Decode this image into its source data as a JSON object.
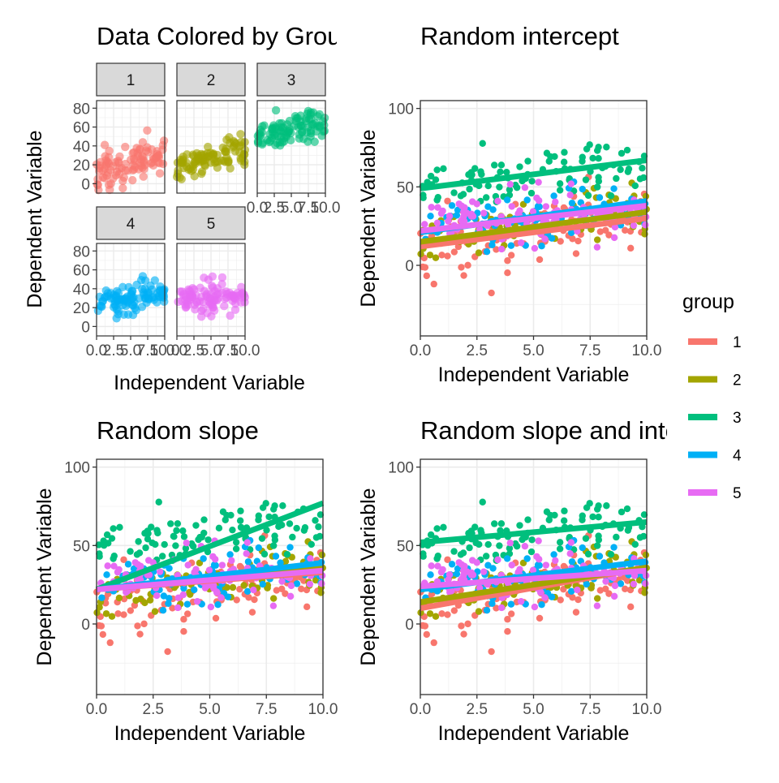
{
  "colors": {
    "1": "#F8766D",
    "2": "#A3A500",
    "3": "#00BF7D",
    "4": "#00B0F6",
    "5": "#E76BF3"
  },
  "chart_data": [
    {
      "type": "scatter",
      "title": "Data Colored by Group",
      "xlabel": "Independent Variable",
      "ylabel": "Dependent Variable",
      "facets": [
        "1",
        "2",
        "3",
        "4",
        "5"
      ],
      "xlim": [
        0,
        10
      ],
      "ylim": [
        -10,
        88
      ],
      "x_ticks": [
        "0.0",
        "2.5",
        "5.0",
        "7.5",
        "10.0"
      ],
      "y_ticks": [
        "0",
        "20",
        "40",
        "60",
        "80"
      ],
      "grid": true,
      "series": [
        {
          "name": "1",
          "intercept": 10,
          "slope": 2.5,
          "noise": 11
        },
        {
          "name": "2",
          "intercept": 15,
          "slope": 2.3,
          "noise": 8
        },
        {
          "name": "3",
          "intercept": 49,
          "slope": 1.6,
          "noise": 9
        },
        {
          "name": "4",
          "intercept": 22,
          "slope": 1.6,
          "noise": 8
        },
        {
          "name": "5",
          "intercept": 31,
          "slope": 0.0,
          "noise": 8
        }
      ]
    },
    {
      "type": "scatter",
      "title": "Random intercept",
      "xlabel": "Independent Variable",
      "ylabel": "Dependent Variable",
      "xlim": [
        0,
        10
      ],
      "ylim": [
        -45,
        105
      ],
      "x_ticks": [
        "0.0",
        "2.5",
        "5.0",
        "7.5",
        "10.0"
      ],
      "y_ticks": [
        "0",
        "50",
        "100"
      ],
      "grid": true,
      "fitted_lines": [
        {
          "group": "1",
          "y_at_x0": 12,
          "y_at_x10": 30
        },
        {
          "group": "2",
          "y_at_x0": 15,
          "y_at_x10": 34
        },
        {
          "group": "3",
          "y_at_x0": 49,
          "y_at_x10": 67
        },
        {
          "group": "4",
          "y_at_x0": 21,
          "y_at_x10": 41
        },
        {
          "group": "5",
          "y_at_x0": 22,
          "y_at_x10": 38
        }
      ]
    },
    {
      "type": "scatter",
      "title": "Random slope",
      "xlabel": "Independent Variable",
      "ylabel": "Dependent Variable",
      "xlim": [
        0,
        10
      ],
      "ylim": [
        -45,
        105
      ],
      "x_ticks": [
        "0.0",
        "2.5",
        "5.0",
        "7.5",
        "10.0"
      ],
      "y_ticks": [
        "0",
        "50",
        "100"
      ],
      "grid": true,
      "fitted_lines": [
        {
          "group": "1",
          "y_at_x0": 22,
          "y_at_x10": 33
        },
        {
          "group": "2",
          "y_at_x0": 22,
          "y_at_x10": 36
        },
        {
          "group": "3",
          "y_at_x0": 22,
          "y_at_x10": 77
        },
        {
          "group": "4",
          "y_at_x0": 22,
          "y_at_x10": 39
        },
        {
          "group": "5",
          "y_at_x0": 22,
          "y_at_x10": 34
        }
      ]
    },
    {
      "type": "scatter",
      "title": "Random slope and intercept",
      "xlabel": "Independent Variable",
      "ylabel": "Dependent Variable",
      "xlim": [
        0,
        10
      ],
      "ylim": [
        -45,
        105
      ],
      "x_ticks": [
        "0.0",
        "2.5",
        "5.0",
        "7.5",
        "10.0"
      ],
      "y_ticks": [
        "0",
        "50",
        "100"
      ],
      "grid": true,
      "fitted_lines": [
        {
          "group": "1",
          "y_at_x0": 10,
          "y_at_x10": 36
        },
        {
          "group": "2",
          "y_at_x0": 14,
          "y_at_x10": 36
        },
        {
          "group": "3",
          "y_at_x0": 52,
          "y_at_x10": 65
        },
        {
          "group": "4",
          "y_at_x0": 22,
          "y_at_x10": 40
        },
        {
          "group": "5",
          "y_at_x0": 24,
          "y_at_x10": 34
        }
      ]
    }
  ],
  "legend": {
    "title": "group",
    "items": [
      "1",
      "2",
      "3",
      "4",
      "5"
    ]
  }
}
